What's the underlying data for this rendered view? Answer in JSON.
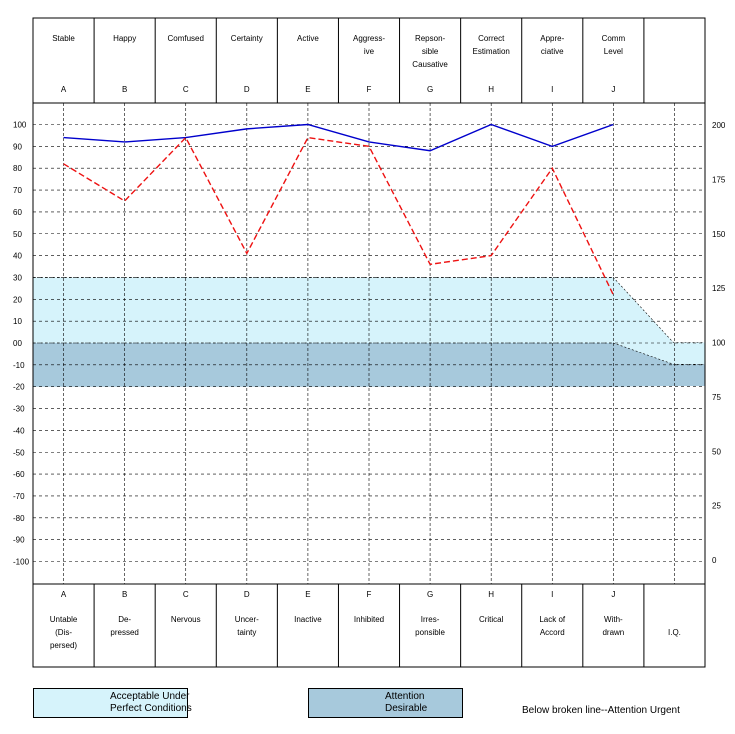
{
  "chart_data": {
    "type": "line",
    "columns": [
      {
        "top": [
          "Stable"
        ],
        "top_letter": "A",
        "bottom_letter": "A",
        "bottom": [
          "Untable",
          "(Dis-",
          "persed)"
        ]
      },
      {
        "top": [
          "Happy"
        ],
        "top_letter": "B",
        "bottom_letter": "B",
        "bottom": [
          "De-",
          "pressed"
        ]
      },
      {
        "top": [
          "Comfused"
        ],
        "top_letter": "C",
        "bottom_letter": "C",
        "bottom": [
          "Nervous"
        ]
      },
      {
        "top": [
          "Certainty"
        ],
        "top_letter": "D",
        "bottom_letter": "D",
        "bottom": [
          "Uncer-",
          "tainty"
        ]
      },
      {
        "top": [
          "Active"
        ],
        "top_letter": "E",
        "bottom_letter": "E",
        "bottom": [
          "Inactive"
        ]
      },
      {
        "top": [
          "Aggress-",
          "ive"
        ],
        "top_letter": "F",
        "bottom_letter": "F",
        "bottom": [
          "Inhibited"
        ]
      },
      {
        "top": [
          "Repson-",
          "sible",
          "Causative"
        ],
        "top_letter": "G",
        "bottom_letter": "G",
        "bottom": [
          "Irres-",
          "ponsible"
        ]
      },
      {
        "top": [
          "Correct",
          "Estimation"
        ],
        "top_letter": "H",
        "bottom_letter": "H",
        "bottom": [
          "Critical"
        ]
      },
      {
        "top": [
          "Appre-",
          "ciative"
        ],
        "top_letter": "I",
        "bottom_letter": "I",
        "bottom": [
          "Lack of",
          "Accord"
        ]
      },
      {
        "top": [
          "Comm",
          "Level"
        ],
        "top_letter": "J",
        "bottom_letter": "J",
        "bottom": [
          "With-",
          "drawn"
        ]
      },
      {
        "top": [],
        "top_letter": "",
        "bottom_letter": "",
        "bottom": [
          "I.Q."
        ]
      }
    ],
    "left_axis": {
      "ticks": [
        "100",
        "90",
        "80",
        "70",
        "60",
        "50",
        "40",
        "30",
        "20",
        "10",
        "00",
        "-10",
        "-20",
        "-30",
        "-40",
        "-50",
        "-60",
        "-70",
        "-80",
        "-90",
        "-100"
      ],
      "range": [
        -100,
        100
      ]
    },
    "right_axis": {
      "title": "I.Q.",
      "ticks": [
        "200",
        "175",
        "150",
        "125",
        "100",
        "75",
        "50",
        "25",
        "0"
      ]
    },
    "series": [
      {
        "color": "#0000cc",
        "style": "solid",
        "values": [
          94,
          92,
          94,
          98,
          100,
          92,
          88,
          100,
          90,
          100
        ]
      },
      {
        "color": "#ee1111",
        "style": "dashed",
        "values": [
          82,
          65,
          94,
          41,
          94,
          90,
          36,
          40,
          80,
          22
        ]
      }
    ],
    "bands": {
      "acceptable": {
        "color": "#d6f3fb",
        "from": 30,
        "to": 0,
        "iq_from": 100,
        "iq_to": 90
      },
      "attention": {
        "color": "#a7c9dc",
        "from": 0,
        "to": -20,
        "iq_from": 90,
        "iq_to": 80
      }
    }
  },
  "legend": {
    "acceptable_lines": [
      "Acceptable Under",
      "Perfect Conditions"
    ],
    "attention_lines": [
      "Attention",
      "Desirable"
    ],
    "urgent_text": "Below broken line--Attention Urgent",
    "acceptable_color": "#d6f3fb",
    "attention_color": "#a7c9dc"
  }
}
